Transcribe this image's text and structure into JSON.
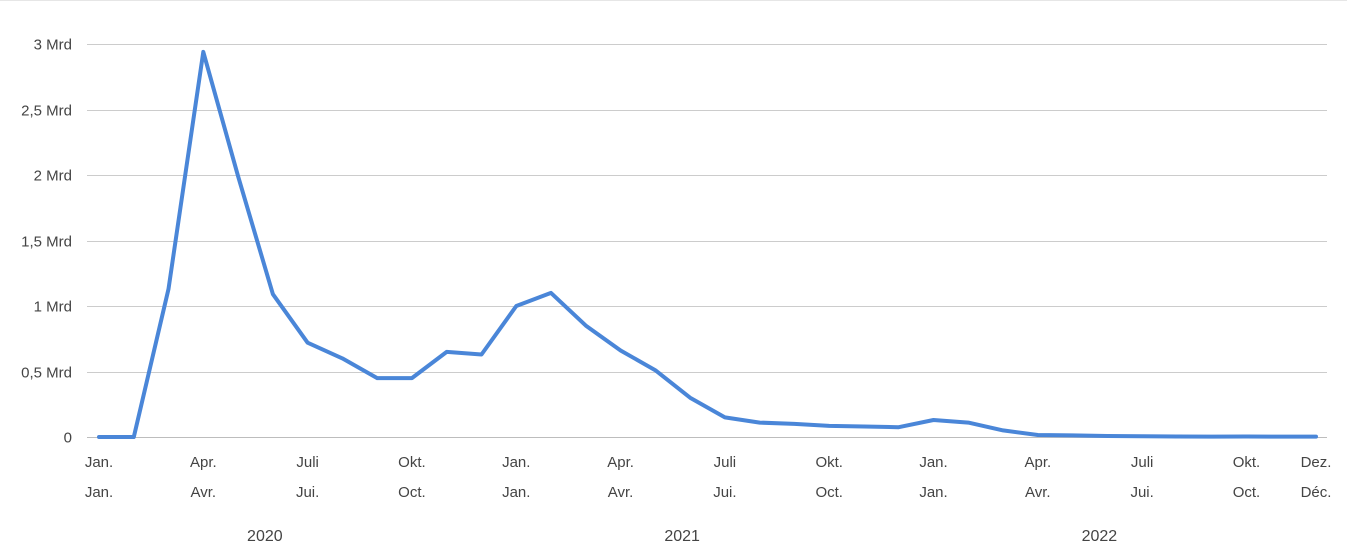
{
  "chart_data": {
    "type": "line",
    "title": "",
    "xlabel": "",
    "ylabel": "",
    "ylim": [
      0,
      3000000000
    ],
    "grid": true,
    "legend": "none",
    "colors": {
      "series": "#4a86d8",
      "grid": "#cccccc",
      "text": "#444444"
    },
    "y_ticks": [
      {
        "value": 0,
        "label": "0"
      },
      {
        "value": 500000000,
        "label": "0,5 Mrd"
      },
      {
        "value": 1000000000,
        "label": "1 Mrd"
      },
      {
        "value": 1500000000,
        "label": "1,5 Mrd"
      },
      {
        "value": 2000000000,
        "label": "2 Mrd"
      },
      {
        "value": 2500000000,
        "label": "2,5 Mrd"
      },
      {
        "value": 3000000000,
        "label": "3 Mrd"
      }
    ],
    "x_ticks": [
      {
        "date": "2020-01",
        "label_de": "Jan.",
        "label_fr": "Jan."
      },
      {
        "date": "2020-04",
        "label_de": "Apr.",
        "label_fr": "Avr."
      },
      {
        "date": "2020-07",
        "label_de": "Juli",
        "label_fr": "Jui."
      },
      {
        "date": "2020-10",
        "label_de": "Okt.",
        "label_fr": "Oct."
      },
      {
        "date": "2021-01",
        "label_de": "Jan.",
        "label_fr": "Jan."
      },
      {
        "date": "2021-04",
        "label_de": "Apr.",
        "label_fr": "Avr."
      },
      {
        "date": "2021-07",
        "label_de": "Juli",
        "label_fr": "Jui."
      },
      {
        "date": "2021-10",
        "label_de": "Okt.",
        "label_fr": "Oct."
      },
      {
        "date": "2022-01",
        "label_de": "Jan.",
        "label_fr": "Jan."
      },
      {
        "date": "2022-04",
        "label_de": "Apr.",
        "label_fr": "Avr."
      },
      {
        "date": "2022-07",
        "label_de": "Juli",
        "label_fr": "Jui."
      },
      {
        "date": "2022-10",
        "label_de": "Okt.",
        "label_fr": "Oct."
      },
      {
        "date": "2022-12",
        "label_de": "Dez.",
        "label_fr": "Déc."
      }
    ],
    "years": [
      {
        "date": "2020-06",
        "label": "2020"
      },
      {
        "date": "2021-06",
        "label": "2021"
      },
      {
        "date": "2022-06",
        "label": "2022"
      }
    ],
    "x": [
      "2020-01",
      "2020-02",
      "2020-03",
      "2020-04",
      "2020-05",
      "2020-06",
      "2020-07",
      "2020-08",
      "2020-09",
      "2020-10",
      "2020-11",
      "2020-12",
      "2021-01",
      "2021-02",
      "2021-03",
      "2021-04",
      "2021-05",
      "2021-06",
      "2021-07",
      "2021-08",
      "2021-09",
      "2021-10",
      "2021-11",
      "2021-12",
      "2022-01",
      "2022-02",
      "2022-03",
      "2022-04",
      "2022-05",
      "2022-06",
      "2022-07",
      "2022-08",
      "2022-09",
      "2022-10",
      "2022-11",
      "2022-12"
    ],
    "series": [
      {
        "values": [
          0,
          0,
          1130000000,
          2940000000,
          1990000000,
          1090000000,
          720000000,
          600000000,
          450000000,
          450000000,
          650000000,
          630000000,
          1000000000,
          1100000000,
          850000000,
          660000000,
          510000000,
          300000000,
          150000000,
          110000000,
          100000000,
          85000000,
          80000000,
          75000000,
          130000000,
          110000000,
          50000000,
          15000000,
          12000000,
          8000000,
          5000000,
          4000000,
          3000000,
          4000000,
          3000000,
          3000000
        ]
      }
    ]
  }
}
